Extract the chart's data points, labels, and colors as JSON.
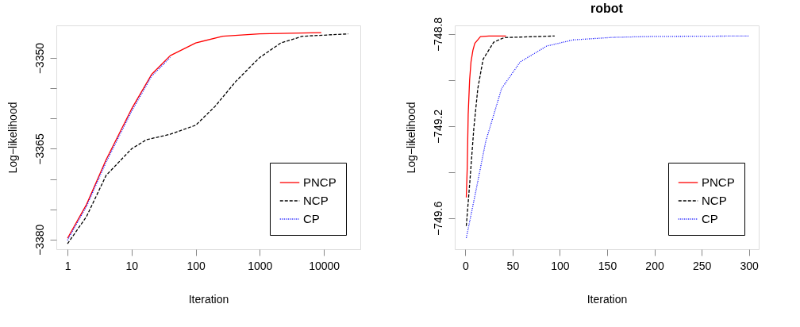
{
  "chart_data": [
    {
      "type": "line",
      "xlabel": "Iteration",
      "ylabel": "Log−likelihood",
      "log": "x",
      "legend": "bottom right",
      "grid": false,
      "xlim": [
        0.67,
        37000
      ],
      "xticks": [
        1,
        10,
        100,
        1000,
        10000
      ],
      "ylim": [
        -3381.6,
        -3344.6
      ],
      "yticks": [
        {
          "value": -3350,
          "label": "−3350"
        },
        {
          "value": -3355,
          "label": null
        },
        {
          "value": -3360,
          "label": null
        },
        {
          "value": -3365,
          "label": "−3365"
        },
        {
          "value": -3370,
          "label": null
        },
        {
          "value": -3375,
          "label": null
        },
        {
          "value": -3380,
          "label": "−3380"
        }
      ],
      "series": [
        {
          "name": "PNCP",
          "color": "#ff0000",
          "line_style": "solid",
          "x": [
            1,
            1.98,
            4,
            10,
            20.5,
            40,
            100,
            265,
            1000,
            9100
          ],
          "values": [
            -3379.8,
            -3374.2,
            -3366.8,
            -3358.4,
            -3352.7,
            -3349.6,
            -3347.5,
            -3346.4,
            -3346.0,
            -3345.8
          ]
        },
        {
          "name": "NCP",
          "color": "#000000",
          "line_style": "dashed",
          "x": [
            1,
            1.98,
            4,
            10,
            17,
            40,
            100,
            200,
            427,
            1000,
            2130,
            4600,
            24000
          ],
          "values": [
            -3380.7,
            -3376.2,
            -3369.4,
            -3365.0,
            -3363.5,
            -3362.6,
            -3361.1,
            -3358.0,
            -3353.8,
            -3349.9,
            -3347.5,
            -3346.4,
            -3346.0
          ]
        },
        {
          "name": "CP",
          "color": "#0000ff",
          "line_style": "dotted",
          "x": [
            1,
            1.98,
            4,
            10,
            20.5,
            40
          ],
          "values": [
            -3380.1,
            -3374.5,
            -3367.2,
            -3358.8,
            -3353.0,
            -3349.9
          ]
        }
      ]
    },
    {
      "type": "line",
      "title": "robot",
      "xlabel": "Iteration",
      "ylabel": "Log−likelihood",
      "legend": "bottom right",
      "grid": false,
      "xlim": [
        -11.2,
        310.4
      ],
      "xticks": [
        0,
        50,
        100,
        150,
        200,
        250,
        300
      ],
      "ylim": [
        -749.735,
        -748.762
      ],
      "yticks": [
        {
          "value": -748.8,
          "label": "−748.8"
        },
        {
          "value": -749.0,
          "label": null
        },
        {
          "value": -749.2,
          "label": "−749.2"
        },
        {
          "value": -749.4,
          "label": null
        },
        {
          "value": -749.6,
          "label": "−749.6"
        }
      ],
      "series": [
        {
          "name": "PNCP",
          "color": "#ff0000",
          "line_style": "solid",
          "x": [
            1,
            2,
            3,
            4.5,
            6,
            8,
            10,
            16,
            25,
            43
          ],
          "values": [
            -749.51,
            -749.38,
            -749.15,
            -749.0,
            -748.92,
            -748.87,
            -748.84,
            -748.811,
            -748.808,
            -748.808
          ]
        },
        {
          "name": "NCP",
          "color": "#000000",
          "line_style": "dashed",
          "x": [
            1,
            4.8,
            9,
            13.2,
            18.8,
            30,
            41,
            94.5
          ],
          "values": [
            -749.634,
            -749.439,
            -749.208,
            -749.036,
            -748.909,
            -748.835,
            -748.815,
            -748.808
          ]
        },
        {
          "name": "CP",
          "color": "#0000ff",
          "line_style": "dotted",
          "x": [
            1,
            10.4,
            21.6,
            38.4,
            58,
            86,
            114,
            156,
            198,
            300
          ],
          "values": [
            -749.686,
            -749.497,
            -749.266,
            -749.036,
            -748.921,
            -748.852,
            -748.825,
            -748.814,
            -748.81,
            -748.808
          ]
        }
      ]
    }
  ]
}
